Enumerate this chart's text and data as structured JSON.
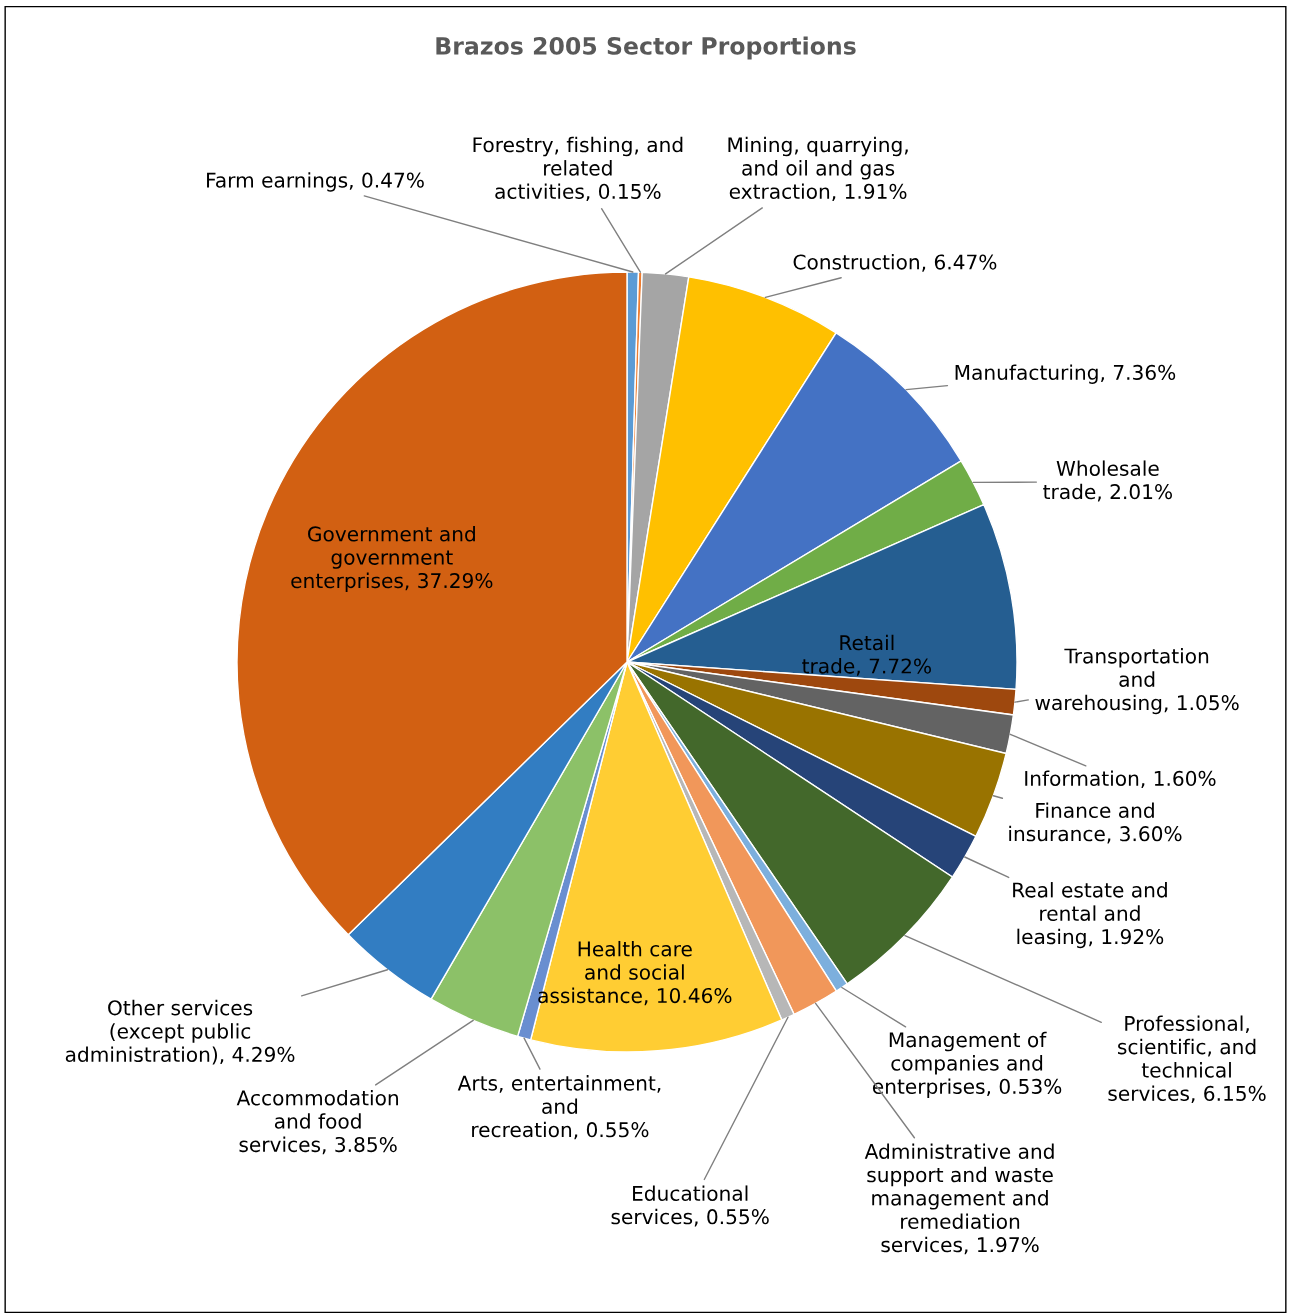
{
  "chart_data": {
    "type": "pie",
    "title": "Brazos 2005 Sector Proportions",
    "categories": [
      "Farm earnings",
      "Forestry, fishing, and related activities",
      "Mining, quarrying, and oil and gas extraction",
      "Construction",
      "Manufacturing",
      "Wholesale trade",
      "Retail trade",
      "Transportation and warehousing",
      "Information",
      "Finance and insurance",
      "Real estate and rental and leasing",
      "Professional, scientific, and technical services",
      "Management of companies and enterprises",
      "Administrative and support and waste management and remediation services",
      "Educational services",
      "Health care and social assistance",
      "Arts, entertainment, and recreation",
      "Accommodation and food services",
      "Other services (except public administration)",
      "Government and government enterprises"
    ],
    "values": [
      0.47,
      0.15,
      1.91,
      6.47,
      7.36,
      2.01,
      7.72,
      1.05,
      1.6,
      3.6,
      1.92,
      6.15,
      0.53,
      1.97,
      0.55,
      10.46,
      0.55,
      3.85,
      4.29,
      37.29
    ],
    "value_labels": [
      "0.47%",
      "0.15%",
      "1.91%",
      "6.47%",
      "7.36%",
      "2.01%",
      "7.72%",
      "1.05%",
      "1.60%",
      "3.60%",
      "1.92%",
      "6.15%",
      "0.53%",
      "1.97%",
      "0.55%",
      "10.46%",
      "0.55%",
      "3.85%",
      "4.29%",
      "37.29%"
    ],
    "colors": [
      "#5b9bd5",
      "#ed7d31",
      "#a5a5a5",
      "#ffc000",
      "#4472c4",
      "#70ad47",
      "#255e91",
      "#9e480e",
      "#636363",
      "#997300",
      "#264478",
      "#43682b",
      "#7cafdd",
      "#f1975a",
      "#b7b7b7",
      "#ffcd33",
      "#698ed0",
      "#8cc168",
      "#327dc2",
      "#d26012"
    ],
    "legend": false
  }
}
